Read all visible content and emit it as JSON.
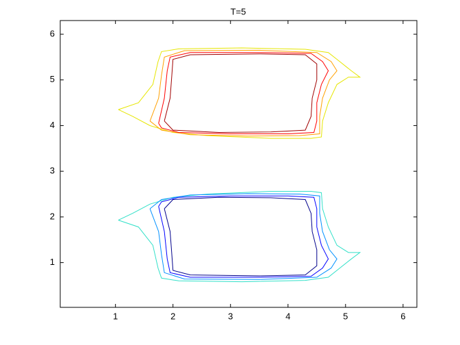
{
  "chart_data": {
    "type": "contour",
    "title": "T=5",
    "xlim": [
      0.04,
      6.24
    ],
    "ylim": [
      0.02,
      6.3
    ],
    "xticks": [
      1,
      2,
      3,
      4,
      5,
      6
    ],
    "yticks": [
      1,
      2,
      3,
      4,
      5,
      6
    ],
    "series": [
      {
        "color": "#e6e600",
        "x": [
          1.05,
          1.4,
          1.65,
          1.74,
          1.8,
          2.1,
          3.2,
          4.3,
          4.7,
          4.9,
          5.1,
          5.25,
          5.05,
          4.85,
          4.7,
          4.6,
          4.58,
          4.4,
          3.7,
          2.6,
          2.0,
          1.6,
          1.3,
          1.05
        ],
        "y": [
          4.35,
          4.5,
          4.9,
          5.4,
          5.62,
          5.68,
          5.7,
          5.67,
          5.6,
          5.4,
          5.2,
          5.06,
          5.06,
          4.9,
          4.5,
          4.1,
          3.75,
          3.72,
          3.72,
          3.78,
          3.85,
          4.0,
          4.2,
          4.35
        ]
      },
      {
        "color": "#ffa000",
        "x": [
          1.6,
          1.75,
          1.8,
          1.85,
          2.2,
          3.5,
          4.5,
          4.75,
          4.85,
          4.72,
          4.6,
          4.55,
          4.55,
          4.2,
          3.3,
          2.3,
          1.8,
          1.6
        ],
        "y": [
          4.1,
          4.6,
          5.1,
          5.5,
          5.64,
          5.65,
          5.6,
          5.4,
          5.2,
          5.0,
          4.6,
          4.2,
          3.82,
          3.78,
          3.77,
          3.8,
          3.9,
          4.1
        ]
      },
      {
        "color": "#ff0000",
        "x": [
          1.75,
          1.85,
          1.9,
          1.95,
          2.3,
          3.5,
          4.4,
          4.6,
          4.7,
          4.58,
          4.5,
          4.5,
          4.45,
          4.0,
          3.0,
          2.1,
          1.8,
          1.75
        ],
        "y": [
          4.05,
          4.6,
          5.2,
          5.5,
          5.6,
          5.6,
          5.58,
          5.4,
          5.2,
          4.9,
          4.5,
          4.1,
          3.85,
          3.82,
          3.82,
          3.85,
          3.95,
          4.05
        ]
      },
      {
        "color": "#a00000",
        "x": [
          1.85,
          1.95,
          1.98,
          2.0,
          2.3,
          3.5,
          4.3,
          4.5,
          4.5,
          4.42,
          4.4,
          4.3,
          3.7,
          2.8,
          2.0,
          1.85
        ],
        "y": [
          4.1,
          4.6,
          5.1,
          5.45,
          5.55,
          5.57,
          5.55,
          5.35,
          5.0,
          4.6,
          4.2,
          3.9,
          3.86,
          3.85,
          3.9,
          4.1
        ]
      },
      {
        "color": "#30e0c8",
        "x": [
          1.05,
          1.4,
          1.65,
          1.74,
          1.8,
          2.1,
          3.2,
          4.3,
          4.7,
          4.9,
          5.1,
          5.25,
          5.05,
          4.85,
          4.7,
          4.6,
          4.58,
          4.4,
          3.7,
          2.6,
          2.0,
          1.6,
          1.3,
          1.05
        ],
        "y": [
          1.93,
          1.78,
          1.38,
          0.88,
          0.66,
          0.6,
          0.58,
          0.61,
          0.68,
          0.88,
          1.08,
          1.22,
          1.22,
          1.38,
          1.78,
          2.18,
          2.53,
          2.56,
          2.56,
          2.5,
          2.43,
          2.28,
          2.08,
          1.93
        ]
      },
      {
        "color": "#0090ff",
        "x": [
          1.6,
          1.75,
          1.8,
          1.85,
          2.2,
          3.5,
          4.5,
          4.75,
          4.85,
          4.72,
          4.6,
          4.55,
          4.55,
          4.2,
          3.3,
          2.3,
          1.8,
          1.6
        ],
        "y": [
          2.18,
          1.68,
          1.18,
          0.78,
          0.64,
          0.63,
          0.68,
          0.88,
          1.08,
          1.28,
          1.68,
          2.08,
          2.46,
          2.5,
          2.51,
          2.48,
          2.38,
          2.18
        ]
      },
      {
        "color": "#0000ff",
        "x": [
          1.75,
          1.85,
          1.9,
          1.95,
          2.3,
          3.5,
          4.4,
          4.6,
          4.7,
          4.58,
          4.5,
          4.5,
          4.45,
          4.0,
          3.0,
          2.1,
          1.8,
          1.75
        ],
        "y": [
          2.23,
          1.68,
          1.08,
          0.78,
          0.68,
          0.68,
          0.7,
          0.88,
          1.08,
          1.38,
          1.78,
          2.18,
          2.43,
          2.46,
          2.46,
          2.43,
          2.33,
          2.23
        ]
      },
      {
        "color": "#00008b",
        "x": [
          1.85,
          1.95,
          1.98,
          2.0,
          2.3,
          3.5,
          4.3,
          4.5,
          4.5,
          4.42,
          4.4,
          4.3,
          3.7,
          2.8,
          2.0,
          1.85
        ],
        "y": [
          2.18,
          1.68,
          1.18,
          0.83,
          0.73,
          0.71,
          0.73,
          0.93,
          1.28,
          1.68,
          2.08,
          2.38,
          2.42,
          2.43,
          2.38,
          2.18
        ]
      }
    ]
  }
}
